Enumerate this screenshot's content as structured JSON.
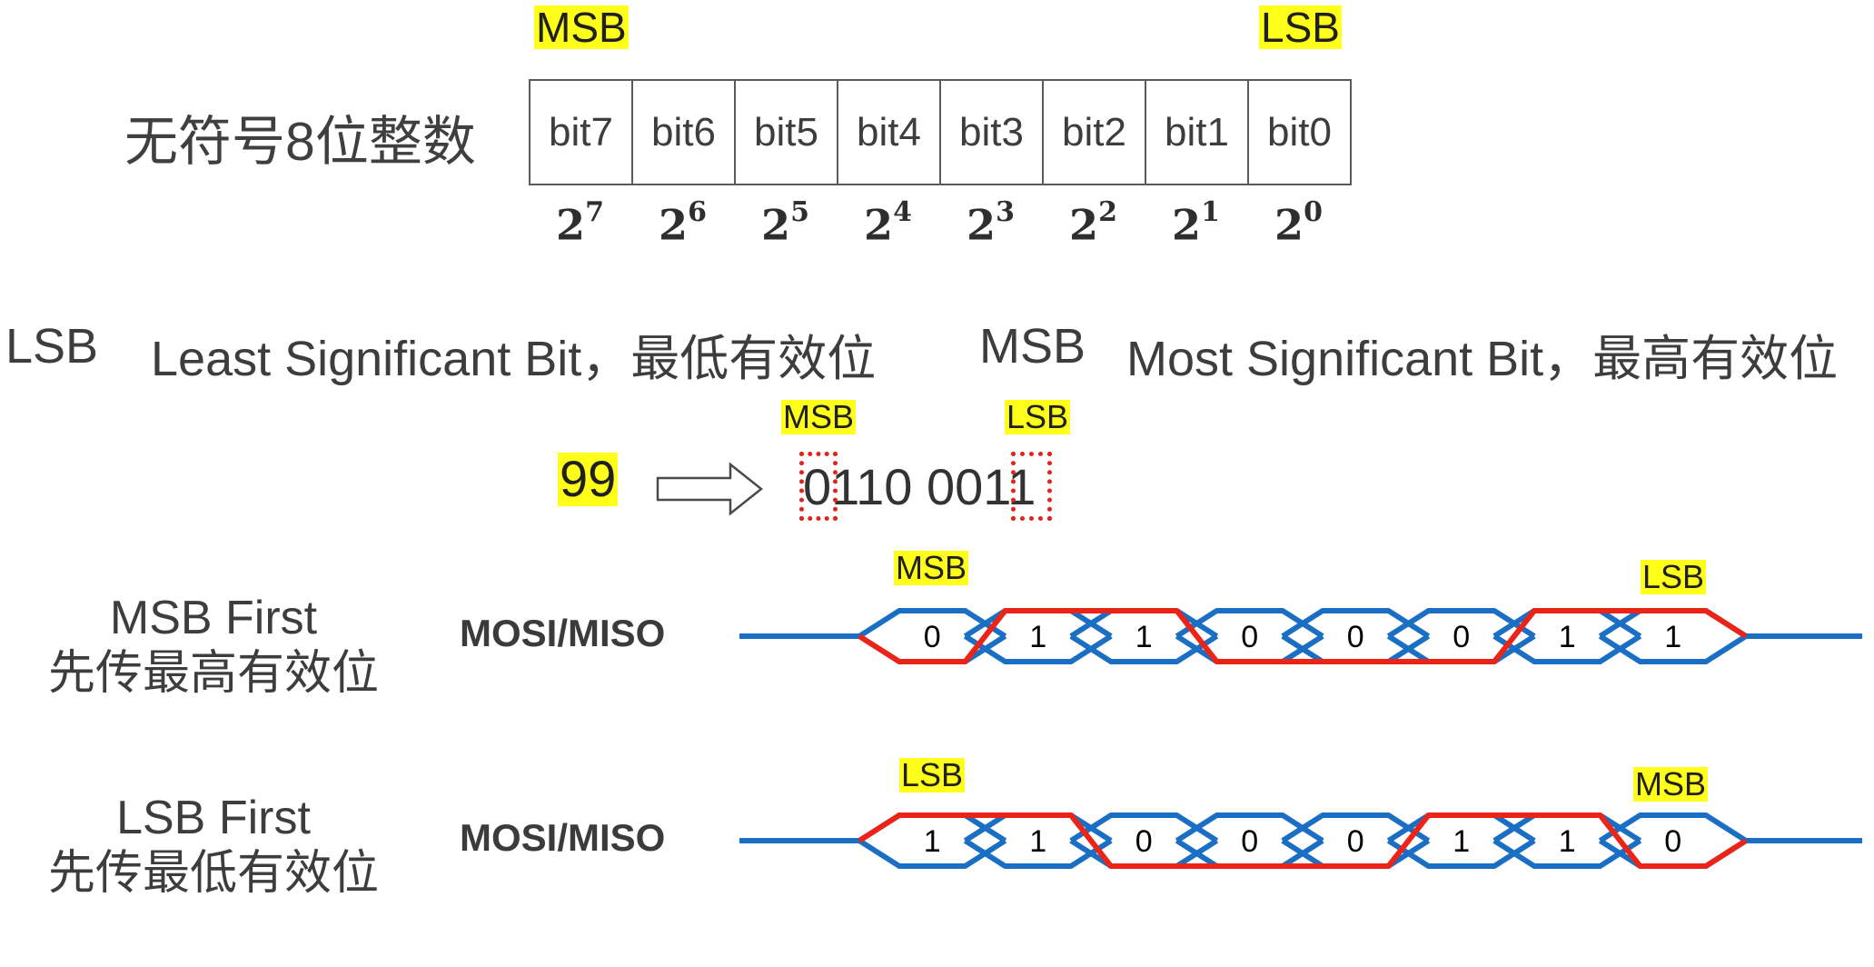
{
  "top": {
    "msb_tag": "MSB",
    "lsb_tag": "LSB",
    "title": "无符号8位整数",
    "bits": [
      "bit7",
      "bit6",
      "bit5",
      "bit4",
      "bit3",
      "bit2",
      "bit1",
      "bit0"
    ],
    "powers": [
      {
        "base": "2",
        "exp": "7"
      },
      {
        "base": "2",
        "exp": "6"
      },
      {
        "base": "2",
        "exp": "5"
      },
      {
        "base": "2",
        "exp": "4"
      },
      {
        "base": "2",
        "exp": "3"
      },
      {
        "base": "2",
        "exp": "2"
      },
      {
        "base": "2",
        "exp": "1"
      },
      {
        "base": "2",
        "exp": "0"
      }
    ]
  },
  "definitions": {
    "lsb_abbr": "LSB",
    "lsb_text": "Least Significant Bit，最低有效位",
    "msb_abbr": "MSB",
    "msb_text": "Most Significant Bit，最高有效位"
  },
  "example": {
    "msb_tag": "MSB",
    "lsb_tag": "LSB",
    "decimal": "99",
    "binary": "0110 0011"
  },
  "msb_first": {
    "title": "MSB First",
    "subtitle": "先传最高有效位",
    "signal": "MOSI/MISO",
    "start_tag": "MSB",
    "end_tag": "LSB",
    "bits": [
      "0",
      "1",
      "1",
      "0",
      "0",
      "0",
      "1",
      "1"
    ]
  },
  "lsb_first": {
    "title": "LSB First",
    "subtitle": "先传最低有效位",
    "signal": "MOSI/MISO",
    "start_tag": "LSB",
    "end_tag": "MSB",
    "bits": [
      "1",
      "1",
      "0",
      "0",
      "0",
      "1",
      "1",
      "0"
    ]
  },
  "colors": {
    "highlight": "#ffff1a",
    "wave_blue": "#1a6fc4",
    "wave_red": "#ec2418",
    "dotted_box": "#e0231d"
  }
}
